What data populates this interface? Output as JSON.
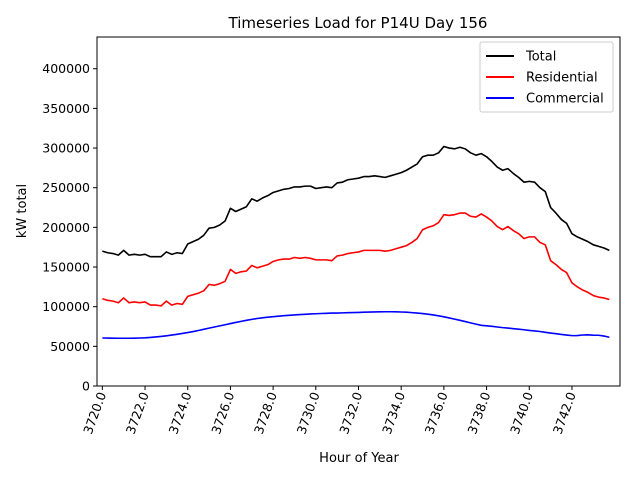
{
  "chart_data": {
    "type": "line",
    "title": "Timeseries Load for P14U   Day 156",
    "xlabel": "Hour of Year",
    "ylabel": "kW total",
    "xlim": [
      3719.75,
      3744.25
    ],
    "ylim": [
      0,
      440000
    ],
    "xticks": [
      3720,
      3722,
      3724,
      3726,
      3728,
      3730,
      3732,
      3734,
      3736,
      3738,
      3740,
      3742
    ],
    "xtick_labels": [
      "3720.0",
      "3722.0",
      "3724.0",
      "3726.0",
      "3728.0",
      "3730.0",
      "3732.0",
      "3734.0",
      "3736.0",
      "3738.0",
      "3740.0",
      "3742.0"
    ],
    "yticks": [
      0,
      50000,
      100000,
      150000,
      200000,
      250000,
      300000,
      350000,
      400000
    ],
    "ytick_labels": [
      "0",
      "50000",
      "100000",
      "150000",
      "200000",
      "250000",
      "300000",
      "350000",
      "400000"
    ],
    "legend_position": "top-right",
    "x_start": 3720,
    "x_step": 0.25,
    "series": [
      {
        "name": "Total",
        "color": "#000000",
        "values": [
          170000,
          168000,
          167000,
          165000,
          171000,
          165000,
          166000,
          165000,
          166000,
          163000,
          163000,
          163000,
          169000,
          166000,
          168000,
          167000,
          179000,
          182000,
          185000,
          190000,
          199000,
          200000,
          203000,
          208000,
          224000,
          220000,
          223000,
          226000,
          236000,
          233000,
          237000,
          240000,
          244000,
          246000,
          248000,
          249000,
          251000,
          251000,
          252000,
          252000,
          249000,
          250000,
          251000,
          250000,
          256000,
          257000,
          260000,
          261000,
          262000,
          264000,
          264000,
          265000,
          264000,
          263000,
          265000,
          267000,
          269000,
          272000,
          276000,
          280000,
          289000,
          291000,
          291000,
          294000,
          302000,
          300000,
          299000,
          301000,
          299000,
          294000,
          291000,
          293000,
          289000,
          283000,
          276000,
          272000,
          274000,
          268000,
          263000,
          257000,
          258000,
          257000,
          250000,
          245000,
          225000,
          218000,
          210000,
          205000,
          192000,
          188000,
          185000,
          182000,
          178000,
          176000,
          174000,
          171000
        ]
      },
      {
        "name": "Residential",
        "color": "#ff0000",
        "values": [
          110000,
          108000,
          107000,
          105000,
          111000,
          105000,
          106000,
          105000,
          106000,
          102000,
          102000,
          101000,
          107000,
          102000,
          104000,
          103000,
          113000,
          115000,
          117000,
          120000,
          128000,
          127000,
          129000,
          132000,
          147000,
          142000,
          144000,
          145000,
          152000,
          149000,
          151000,
          153000,
          157000,
          159000,
          160000,
          160000,
          162000,
          161000,
          162000,
          161000,
          159000,
          159000,
          159000,
          158000,
          164000,
          165000,
          167000,
          168000,
          169000,
          171000,
          171000,
          171000,
          171000,
          170000,
          171000,
          173000,
          175000,
          177000,
          181000,
          186000,
          197000,
          200000,
          202000,
          206000,
          216000,
          215000,
          216000,
          218000,
          218000,
          214000,
          213000,
          217000,
          213000,
          208000,
          201000,
          197000,
          201000,
          196000,
          192000,
          186000,
          188000,
          188000,
          181000,
          178000,
          158000,
          153000,
          147000,
          143000,
          130000,
          125000,
          121000,
          118000,
          114000,
          112000,
          111000,
          109000
        ]
      },
      {
        "name": "Commercial",
        "color": "#0000ff",
        "values": [
          60500,
          60400,
          60300,
          60200,
          60200,
          60200,
          60300,
          60500,
          60700,
          61200,
          61800,
          62500,
          63300,
          64200,
          65200,
          66300,
          67400,
          68600,
          70000,
          71500,
          73000,
          74400,
          75800,
          77200,
          78700,
          80100,
          81500,
          82800,
          84000,
          85100,
          86000,
          86800,
          87400,
          88000,
          88600,
          89100,
          89600,
          90000,
          90400,
          90800,
          91100,
          91400,
          91700,
          91900,
          92000,
          92200,
          92400,
          92600,
          92800,
          93000,
          93200,
          93400,
          93500,
          93600,
          93600,
          93500,
          93300,
          93000,
          92500,
          92000,
          91300,
          90500,
          89600,
          88500,
          87200,
          85800,
          84300,
          82800,
          81200,
          79600,
          78000,
          76500,
          75900,
          75200,
          74400,
          73600,
          73000,
          72300,
          71600,
          70900,
          70100,
          69400,
          68700,
          67700,
          66800,
          65900,
          65000,
          64200,
          63500,
          63600,
          64300,
          64500,
          64100,
          64000,
          63000,
          61500
        ]
      }
    ]
  }
}
